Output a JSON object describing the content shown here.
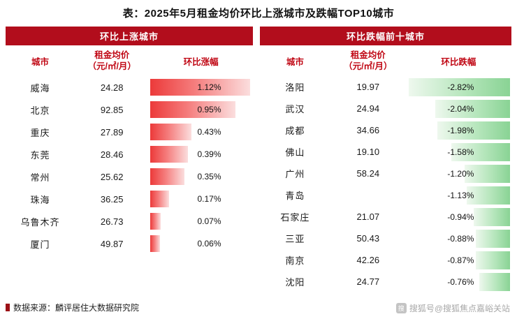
{
  "title": "表：2025年5月租金均价环比上涨城市及跌幅TOP10城市",
  "colors": {
    "header_bg": "#b20d1c",
    "subheader_text": "#c00714",
    "rise_bar_start": "#ec3a3a",
    "rise_bar_end": "#fbdede",
    "fall_bar_start": "#eef8ee",
    "fall_bar_end": "#89d394"
  },
  "left_table": {
    "band_title": "环比上涨城市",
    "columns": {
      "city": "城市",
      "price_line1": "租金均价",
      "price_line2": "（元/㎡/月）",
      "change": "环比涨幅"
    },
    "rows": [
      {
        "city": "威海",
        "price": "24.28",
        "change_label": "1.12%",
        "change_value": 1.12
      },
      {
        "city": "北京",
        "price": "92.85",
        "change_label": "0.95%",
        "change_value": 0.95
      },
      {
        "city": "重庆",
        "price": "27.89",
        "change_label": "0.43%",
        "change_value": 0.43
      },
      {
        "city": "东莞",
        "price": "28.46",
        "change_label": "0.39%",
        "change_value": 0.39
      },
      {
        "city": "常州",
        "price": "25.62",
        "change_label": "0.35%",
        "change_value": 0.35
      },
      {
        "city": "珠海",
        "price": "36.25",
        "change_label": "0.17%",
        "change_value": 0.17
      },
      {
        "city": "乌鲁木齐",
        "price": "26.73",
        "change_label": "0.07%",
        "change_value": 0.07
      },
      {
        "city": "厦门",
        "price": "49.87",
        "change_label": "0.06%",
        "change_value": 0.06
      }
    ]
  },
  "right_table": {
    "band_title": "环比跌幅前十城市",
    "columns": {
      "city": "城市",
      "price_line1": "租金均价",
      "price_line2": "（元/㎡/月）",
      "change": "环比跌幅"
    },
    "rows": [
      {
        "city": "洛阳",
        "price": "19.97",
        "change_label": "-2.82%",
        "change_value": -2.82
      },
      {
        "city": "武汉",
        "price": "24.94",
        "change_label": "-2.04%",
        "change_value": -2.04
      },
      {
        "city": "成都",
        "price": "34.66",
        "change_label": "-1.98%",
        "change_value": -1.98
      },
      {
        "city": "佛山",
        "price": "19.10",
        "change_label": "-1.58%",
        "change_value": -1.58
      },
      {
        "city": "广州",
        "price": "58.24",
        "change_label": "-1.20%",
        "change_value": -1.2
      },
      {
        "city": "青岛",
        "price": "",
        "change_label": "-1.13%",
        "change_value": -1.13
      },
      {
        "city": "石家庄",
        "price": "21.07",
        "change_label": "-0.94%",
        "change_value": -0.94
      },
      {
        "city": "三亚",
        "price": "50.43",
        "change_label": "-0.88%",
        "change_value": -0.88
      },
      {
        "city": "南京",
        "price": "42.26",
        "change_label": "-0.87%",
        "change_value": -0.87
      },
      {
        "city": "沈阳",
        "price": "24.77",
        "change_label": "-0.76%",
        "change_value": -0.76
      }
    ]
  },
  "footer": {
    "source": "数据来源：麟评居住大数据研究院",
    "watermark": "搜狐号@搜狐焦点嘉峪关站"
  },
  "chart_data": [
    {
      "type": "bar",
      "orientation": "horizontal",
      "title": "环比上涨城市",
      "categories": [
        "威海",
        "北京",
        "重庆",
        "东莞",
        "常州",
        "珠海",
        "乌鲁木齐",
        "厦门"
      ],
      "series": [
        {
          "name": "租金均价（元/㎡/月）",
          "values": [
            24.28,
            92.85,
            27.89,
            28.46,
            25.62,
            36.25,
            26.73,
            49.87
          ]
        },
        {
          "name": "环比涨幅(%)",
          "values": [
            1.12,
            0.95,
            0.43,
            0.39,
            0.35,
            0.17,
            0.07,
            0.06
          ]
        }
      ],
      "xlabel": "环比涨幅",
      "ylabel": "城市",
      "legend_position": "none",
      "grid": false
    },
    {
      "type": "bar",
      "orientation": "horizontal",
      "title": "环比跌幅前十城市",
      "categories": [
        "洛阳",
        "武汉",
        "成都",
        "佛山",
        "广州",
        "青岛",
        "石家庄",
        "三亚",
        "南京",
        "沈阳"
      ],
      "series": [
        {
          "name": "租金均价（元/㎡/月）",
          "values": [
            19.97,
            24.94,
            34.66,
            19.1,
            58.24,
            null,
            21.07,
            50.43,
            42.26,
            24.77
          ]
        },
        {
          "name": "环比跌幅(%)",
          "values": [
            -2.82,
            -2.04,
            -1.98,
            -1.58,
            -1.2,
            -1.13,
            -0.94,
            -0.88,
            -0.87,
            -0.76
          ]
        }
      ],
      "xlabel": "环比跌幅",
      "ylabel": "城市",
      "legend_position": "none",
      "grid": false
    }
  ]
}
